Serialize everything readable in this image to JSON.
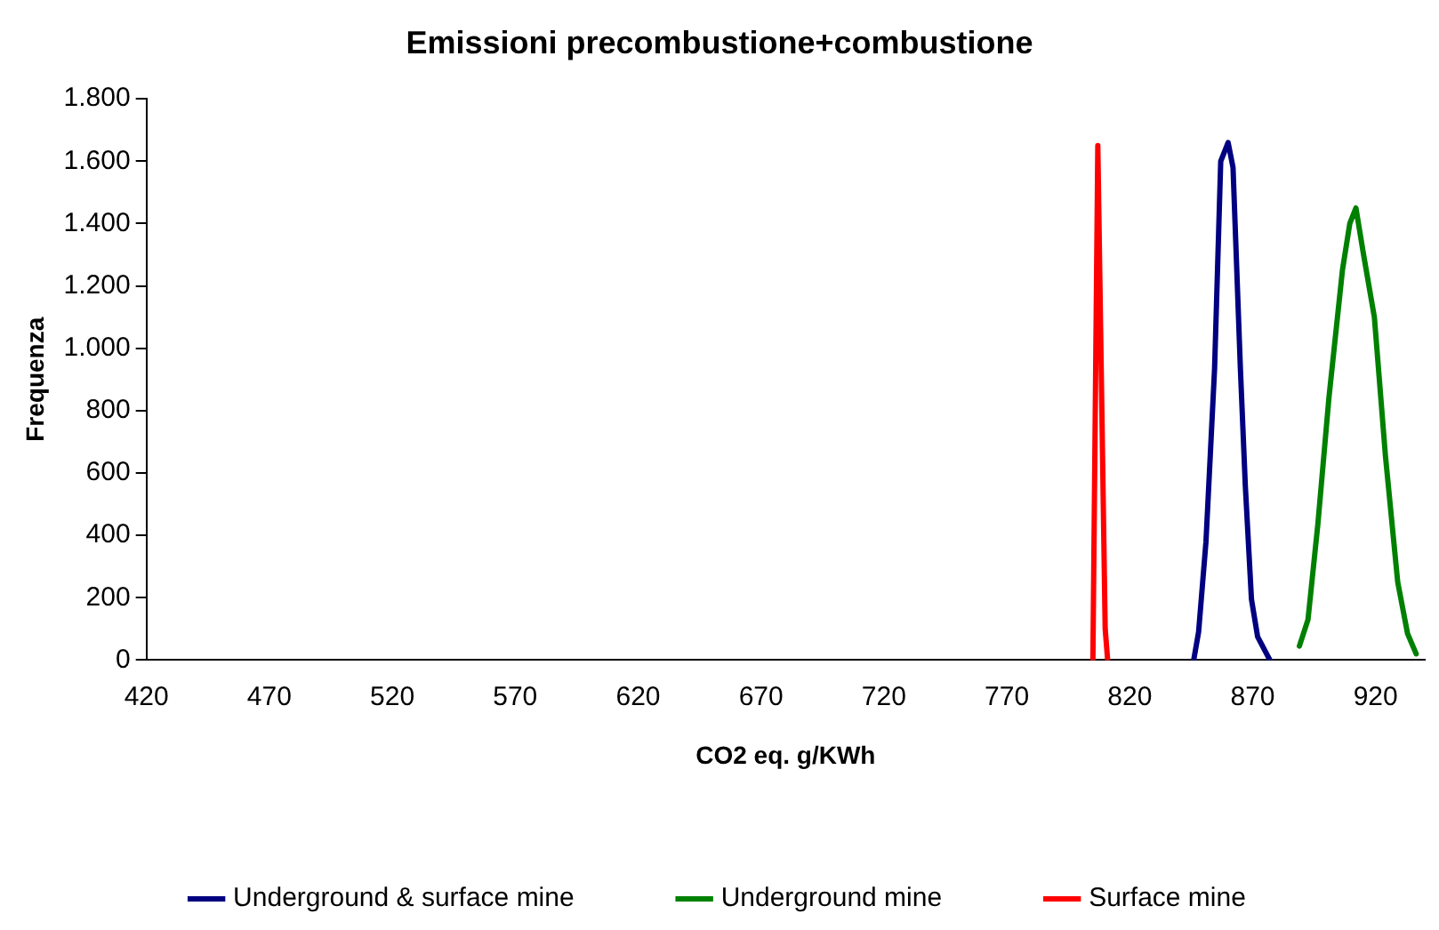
{
  "chart_data": {
    "type": "line",
    "title": "Emissioni precombustione+combustione",
    "xlabel": "CO2 eq. g/KWh",
    "ylabel": "Frequenza",
    "xlim": [
      420,
      940
    ],
    "xticks": [
      420,
      470,
      520,
      570,
      620,
      670,
      720,
      770,
      820,
      870,
      920
    ],
    "ylim": [
      0,
      1800
    ],
    "yticks": [
      0,
      200,
      400,
      600,
      800,
      {
        "value": 1000,
        "label": "1.000"
      },
      {
        "value": 1200,
        "label": "1.200"
      },
      {
        "value": 1400,
        "label": "1.400"
      },
      {
        "value": 1600,
        "label": "1.600"
      },
      {
        "value": 1800,
        "label": "1.800"
      }
    ],
    "grid": false,
    "legend": "bottom",
    "marker": "none",
    "line_style": "solid",
    "series": [
      {
        "name": "Underground & surface mine",
        "color": "#000080",
        "x": [
          846,
          848,
          851,
          854.5,
          857,
          860,
          862,
          865,
          867,
          869.5,
          872,
          877
        ],
        "values": [
          0,
          90,
          380,
          935,
          1600,
          1660,
          1580,
          935,
          560,
          195,
          75,
          0
        ]
      },
      {
        "name": "Underground mine",
        "color": "#008000",
        "x": [
          889,
          892.5,
          896.5,
          901,
          906.5,
          909.5,
          912,
          915,
          919.5,
          924,
          929,
          933,
          936.5
        ],
        "values": [
          45,
          130,
          435,
          840,
          1250,
          1400,
          1450,
          1305,
          1100,
          655,
          250,
          85,
          20
        ]
      },
      {
        "name": "Surface mine",
        "color": "#ff0000",
        "x": [
          805,
          807,
          810,
          811
        ],
        "values": [
          0,
          1650,
          100,
          0
        ]
      }
    ]
  }
}
